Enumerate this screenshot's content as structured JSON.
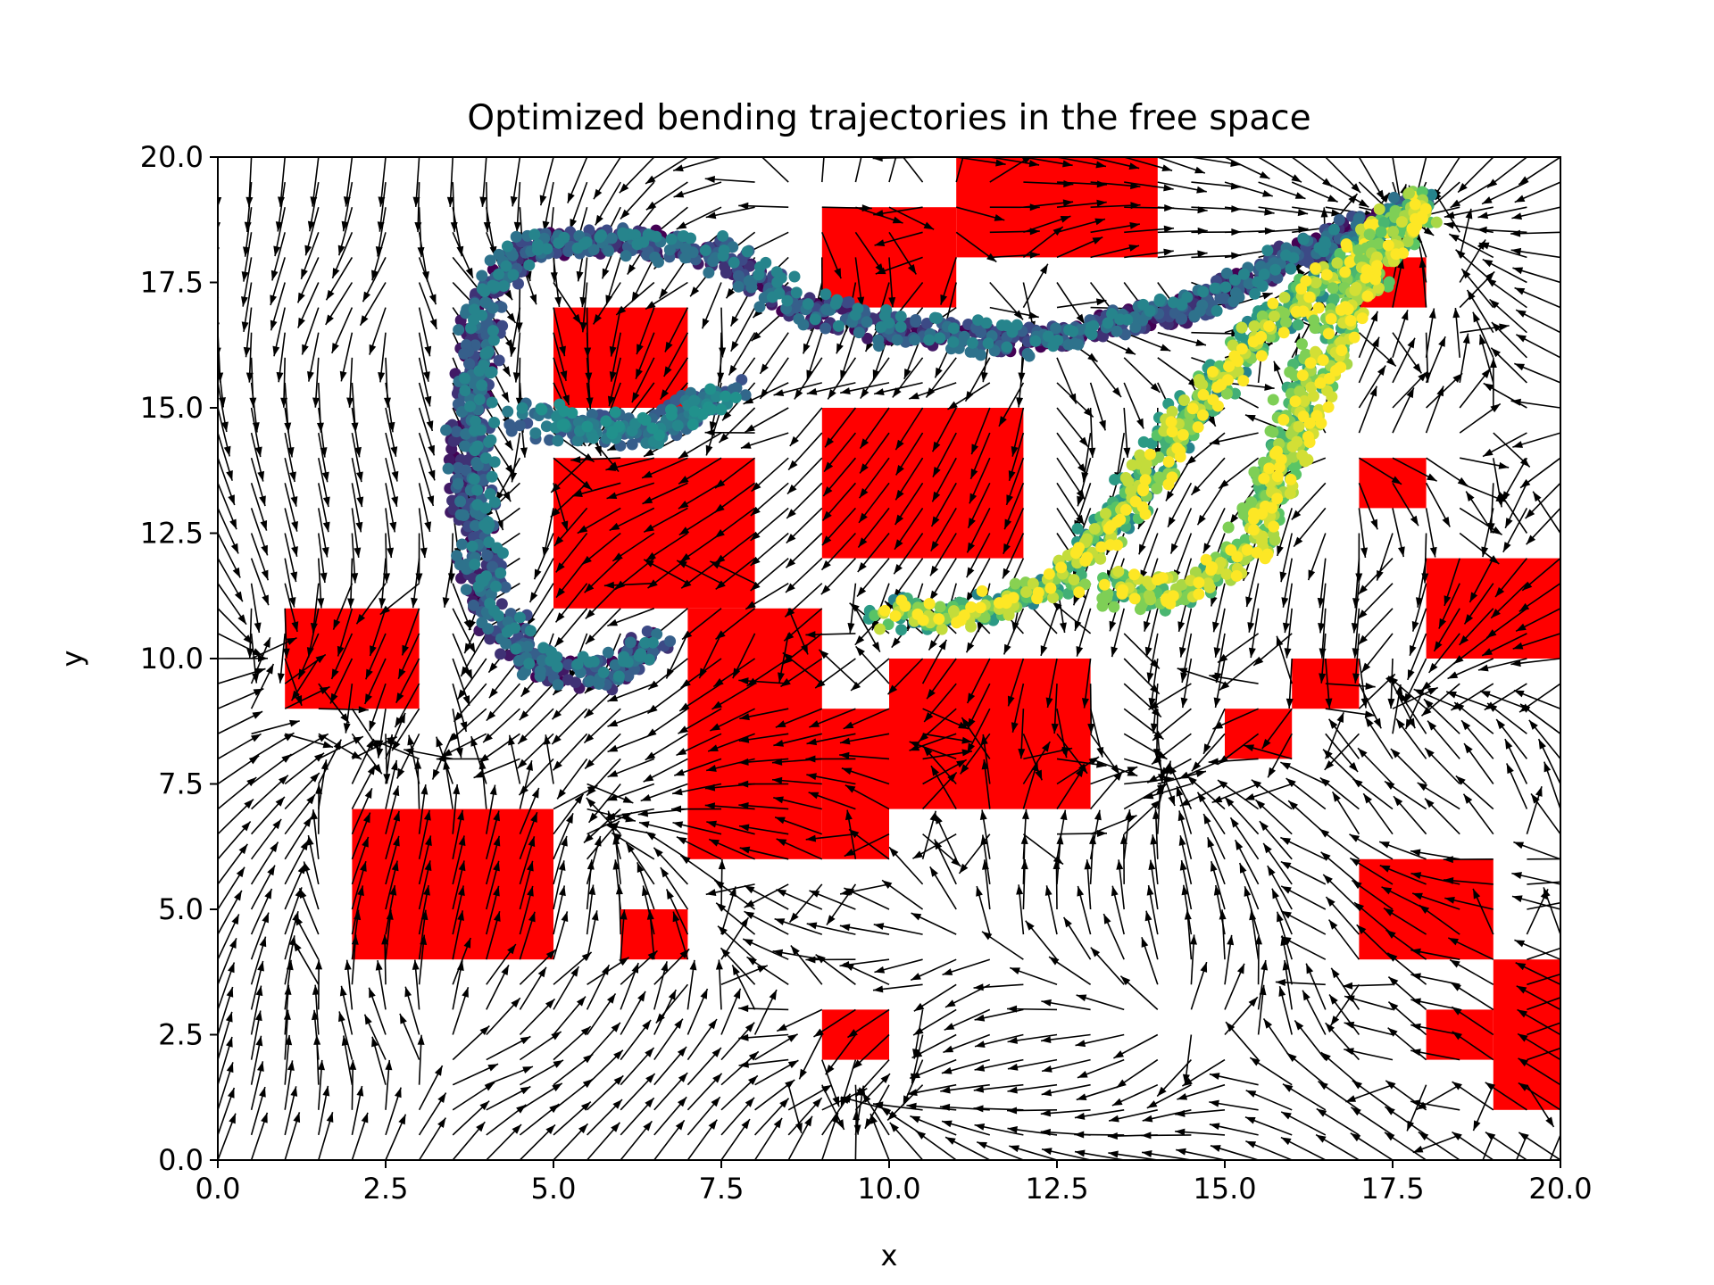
{
  "chart_data": {
    "type": "scatter",
    "title": "Optimized bending trajectories in the free space",
    "xlabel": "x",
    "ylabel": "y",
    "xlim": [
      0,
      20
    ],
    "ylim": [
      0,
      20
    ],
    "xticks": [
      "0.0",
      "2.5",
      "5.0",
      "7.5",
      "10.0",
      "12.5",
      "15.0",
      "17.5",
      "20.0"
    ],
    "yticks": [
      "0.0",
      "2.5",
      "5.0",
      "7.5",
      "10.0",
      "12.5",
      "15.0",
      "17.5",
      "20.0"
    ],
    "grid": false,
    "legend": "none",
    "colors": {
      "obstacle": "#ff0000",
      "arrow": "#000000",
      "colormap": [
        "#440154",
        "#3b528b",
        "#21918c",
        "#5ec962",
        "#fde725"
      ]
    },
    "obstacles": [
      {
        "x0": 11,
        "x1": 14,
        "y0": 18,
        "y1": 20
      },
      {
        "x0": 9,
        "x1": 11,
        "y0": 17,
        "y1": 19
      },
      {
        "x0": 5,
        "x1": 7,
        "y0": 15,
        "y1": 17
      },
      {
        "x0": 9,
        "x1": 12,
        "y0": 12,
        "y1": 15
      },
      {
        "x0": 5,
        "x1": 8,
        "y0": 11,
        "y1": 14
      },
      {
        "x0": 7,
        "x1": 9,
        "y0": 6,
        "y1": 11
      },
      {
        "x0": 9,
        "x1": 10,
        "y0": 6,
        "y1": 9
      },
      {
        "x0": 10,
        "x1": 13,
        "y0": 7,
        "y1": 10
      },
      {
        "x0": 1,
        "x1": 3,
        "y0": 9,
        "y1": 11
      },
      {
        "x0": 2,
        "x1": 5,
        "y0": 4,
        "y1": 7
      },
      {
        "x0": 6,
        "x1": 7,
        "y0": 4,
        "y1": 5
      },
      {
        "x0": 9,
        "x1": 10,
        "y0": 2,
        "y1": 3
      },
      {
        "x0": 17,
        "x1": 18,
        "y0": 17,
        "y1": 18
      },
      {
        "x0": 17,
        "x1": 18,
        "y0": 13,
        "y1": 14
      },
      {
        "x0": 18,
        "x1": 20,
        "y0": 10,
        "y1": 12
      },
      {
        "x0": 16,
        "x1": 17,
        "y0": 9,
        "y1": 10
      },
      {
        "x0": 15,
        "x1": 16,
        "y0": 8,
        "y1": 9
      },
      {
        "x0": 17,
        "x1": 19,
        "y0": 4,
        "y1": 6
      },
      {
        "x0": 19,
        "x1": 20,
        "y0": 1,
        "y1": 4
      },
      {
        "x0": 18,
        "x1": 19,
        "y0": 2,
        "y1": 3
      }
    ],
    "vector_field": {
      "attractors": [
        [
          17.7,
          18.9
        ],
        [
          14.3,
          7.4
        ],
        [
          5.7,
          15.0
        ],
        [
          9.8,
          1.0
        ],
        [
          6.0,
          6.5
        ],
        [
          18.0,
          9.2
        ],
        [
          2.5,
          8.0
        ],
        [
          0.6,
          10.3
        ]
      ],
      "repellers": [
        [
          3.5,
          2.5
        ],
        [
          14.0,
          3.0
        ],
        [
          3.0,
          17.0
        ],
        [
          12.0,
          16.5
        ],
        [
          16.5,
          14.0
        ],
        [
          11.0,
          4.5
        ],
        [
          8.5,
          18.5
        ],
        [
          19.0,
          7.0
        ]
      ]
    },
    "trajectory_bundles": [
      {
        "color_range": [
          0.0,
          0.45
        ],
        "path": [
          [
            17.8,
            19.0
          ],
          [
            16.0,
            18.0
          ],
          [
            14.5,
            17.0
          ],
          [
            12.0,
            16.3
          ],
          [
            10.0,
            16.5
          ],
          [
            8.5,
            17.0
          ],
          [
            7.5,
            18.0
          ],
          [
            6.0,
            18.3
          ],
          [
            4.5,
            18.2
          ],
          [
            3.9,
            17.0
          ],
          [
            3.7,
            15.0
          ],
          [
            3.7,
            13.0
          ],
          [
            4.0,
            11.0
          ],
          [
            4.7,
            9.8
          ],
          [
            5.8,
            9.6
          ],
          [
            6.5,
            10.4
          ]
        ]
      },
      {
        "color_range": [
          0.25,
          0.5
        ],
        "path": [
          [
            7.5,
            15.3
          ],
          [
            6.5,
            14.5
          ],
          [
            5.5,
            14.6
          ],
          [
            4.5,
            14.8
          ]
        ]
      },
      {
        "color_range": [
          0.45,
          1.0
        ],
        "path": [
          [
            17.8,
            19.0
          ],
          [
            16.5,
            17.5
          ],
          [
            15.5,
            16.5
          ],
          [
            14.5,
            15.0
          ],
          [
            13.5,
            13.0
          ],
          [
            12.5,
            11.5
          ],
          [
            11.0,
            10.8
          ],
          [
            9.8,
            10.9
          ]
        ]
      },
      {
        "color_range": [
          0.6,
          1.0
        ],
        "path": [
          [
            17.8,
            19.0
          ],
          [
            17.0,
            17.5
          ],
          [
            16.3,
            15.8
          ],
          [
            15.8,
            14.0
          ],
          [
            15.2,
            12.0
          ],
          [
            14.2,
            11.2
          ],
          [
            13.0,
            11.4
          ]
        ]
      }
    ]
  }
}
